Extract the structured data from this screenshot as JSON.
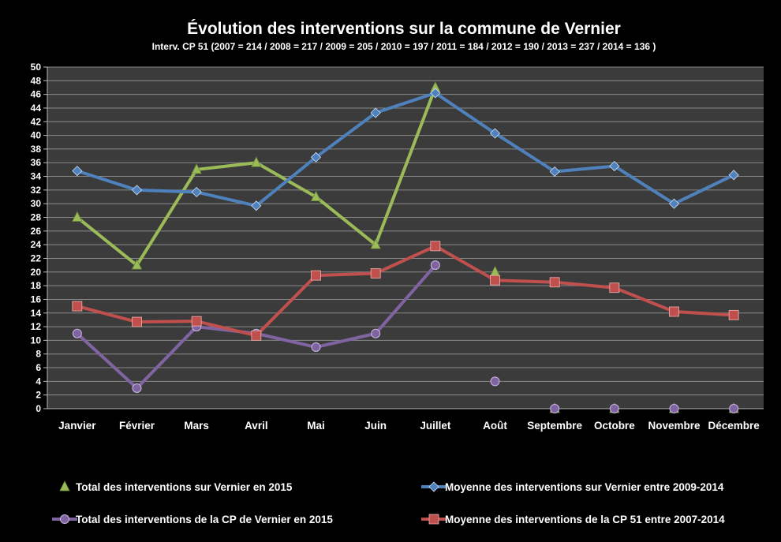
{
  "chart_data": {
    "type": "line",
    "title": "Évolution des interventions sur la commune de Vernier",
    "subtitle": "Interv.  CP 51 (2007 = 214 /  2008 = 217 / 2009 = 205 / 2010 = 197 / 2011 = 184 / 2012 = 190 / 2013 = 237 / 2014 = 136 )",
    "categories": [
      "Janvier",
      "Février",
      "Mars",
      "Avril",
      "Mai",
      "Juin",
      "Juillet",
      "Août",
      "Septembre",
      "Octobre",
      "Novembre",
      "Décembre"
    ],
    "ylim": [
      0,
      50
    ],
    "yticks": [
      0,
      2,
      4,
      6,
      8,
      10,
      12,
      14,
      16,
      18,
      20,
      22,
      24,
      26,
      28,
      30,
      32,
      34,
      36,
      38,
      40,
      42,
      44,
      46,
      48,
      50
    ],
    "grid": true,
    "legend_position": "bottom",
    "series": [
      {
        "name": "Total des interventions sur Vernier en 2015",
        "color": "#9bbb59",
        "marker": "triangle",
        "values": [
          28,
          21,
          35,
          36,
          31,
          24,
          47,
          20,
          0,
          0,
          0,
          0
        ],
        "segments": [
          [
            0,
            6
          ]
        ]
      },
      {
        "name": "Moyenne des interventions sur Vernier entre 2009-2014",
        "color": "#4f81bd",
        "marker": "diamond",
        "values": [
          34.8,
          32,
          31.7,
          29.7,
          36.8,
          43.3,
          46.2,
          40.3,
          34.7,
          35.5,
          30,
          34.2
        ],
        "segments": [
          [
            0,
            11
          ]
        ]
      },
      {
        "name": "Total des interventions de la CP de Vernier en 2015",
        "color": "#8064a2",
        "marker": "circle",
        "values": [
          11,
          3,
          12,
          11,
          9,
          11,
          21,
          4,
          0,
          0,
          0,
          0
        ],
        "segments": [
          [
            0,
            6
          ]
        ]
      },
      {
        "name": "Moyenne des interventions de la CP 51 entre 2007-2014",
        "color": "#c0504d",
        "marker": "square",
        "values": [
          15,
          12.7,
          12.8,
          10.7,
          19.5,
          19.8,
          23.8,
          18.8,
          18.5,
          17.7,
          14.2,
          13.7
        ],
        "segments": [
          [
            0,
            11
          ]
        ]
      }
    ]
  }
}
